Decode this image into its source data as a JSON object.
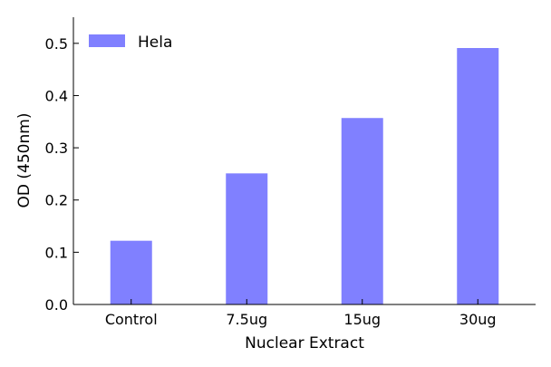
{
  "chart_data": {
    "type": "bar",
    "title": "",
    "xlabel": "Nuclear Extract",
    "ylabel": "OD (450nm)",
    "categories": [
      "Control",
      "7.5ug",
      "15ug",
      "30ug"
    ],
    "series": [
      {
        "name": "Hela",
        "values": [
          0.122,
          0.251,
          0.357,
          0.491
        ]
      }
    ],
    "ylim": [
      0.0,
      0.55
    ],
    "yticks": [
      "0.0",
      "0.1",
      "0.2",
      "0.3",
      "0.4",
      "0.5"
    ],
    "grid": false,
    "legend_position": "top-left",
    "colors": {
      "bar": "#8080ff",
      "axis": "#000000"
    }
  }
}
